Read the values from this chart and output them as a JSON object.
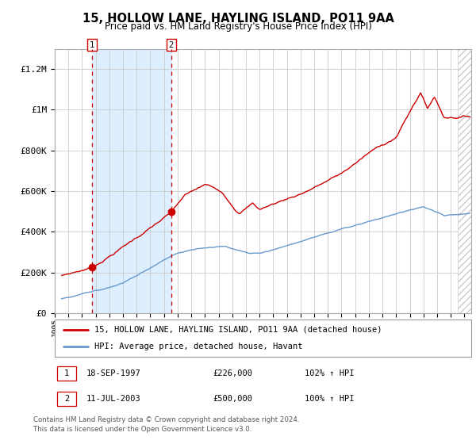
{
  "title": "15, HOLLOW LANE, HAYLING ISLAND, PO11 9AA",
  "subtitle": "Price paid vs. HM Land Registry's House Price Index (HPI)",
  "red_line_color": "#cc0000",
  "blue_line_color": "#6699cc",
  "shaded_region_color": "#ddeeff",
  "grid_color": "#cccccc",
  "ylim": [
    0,
    1300000
  ],
  "xlim_start": 1995.5,
  "xlim_end": 2025.5,
  "sale1_x": 1997.72,
  "sale1_y": 226000,
  "sale2_x": 2003.53,
  "sale2_y": 500000,
  "sale1_date": "18-SEP-1997",
  "sale1_price": "£226,000",
  "sale1_hpi": "102% ↑ HPI",
  "sale2_date": "11-JUL-2003",
  "sale2_price": "£500,000",
  "sale2_hpi": "100% ↑ HPI",
  "legend_red": "15, HOLLOW LANE, HAYLING ISLAND, PO11 9AA (detached house)",
  "legend_blue": "HPI: Average price, detached house, Havant",
  "footer": "Contains HM Land Registry data © Crown copyright and database right 2024.\nThis data is licensed under the Open Government Licence v3.0.",
  "yticks": [
    0,
    200000,
    400000,
    600000,
    800000,
    1000000,
    1200000
  ],
  "ytick_labels": [
    "£0",
    "£200K",
    "£400K",
    "£600K",
    "£800K",
    "£1M",
    "£1.2M"
  ]
}
